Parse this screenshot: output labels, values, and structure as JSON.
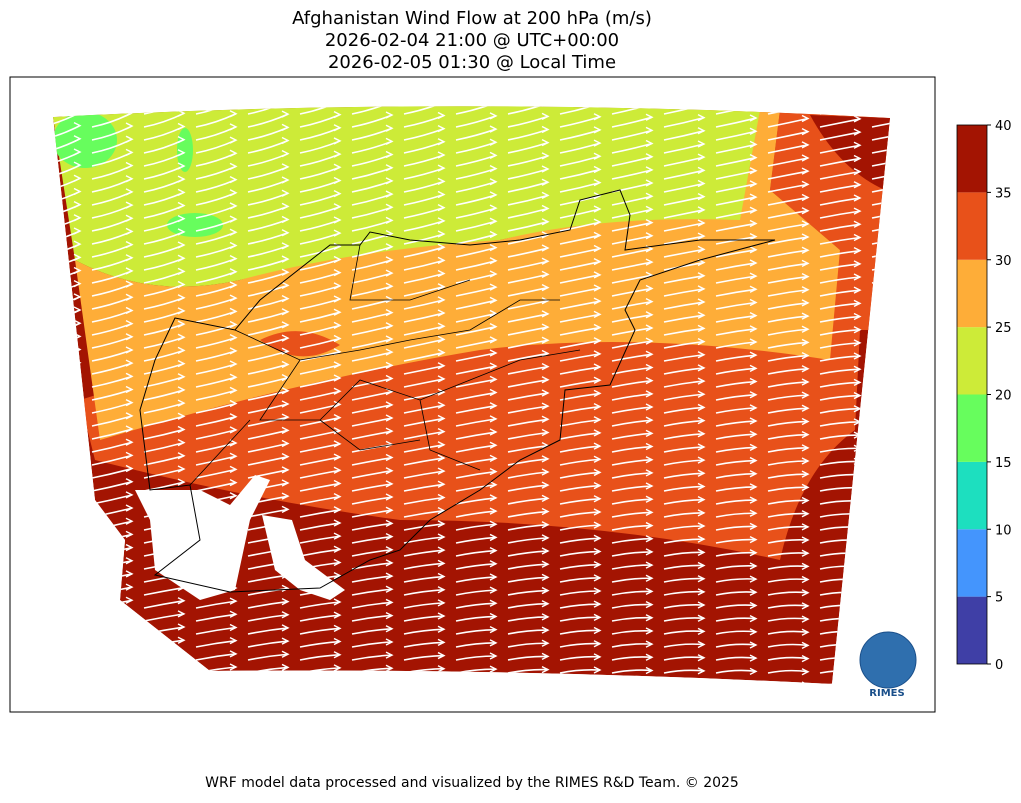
{
  "title": [
    "Afghanistan Wind Flow at 200 hPa (m/s)",
    "2026-02-04 21:00 @ UTC+00:00",
    "2026-02-05 01:30 @ Local Time"
  ],
  "colorbar": {
    "ticks": [
      0,
      5,
      10,
      15,
      20,
      25,
      30,
      35,
      40
    ],
    "colors": [
      "#3f3fa6",
      "#4495fd",
      "#1ddfbf",
      "#67fd5d",
      "#cdeb38",
      "#fead38",
      "#e8511a",
      "#a31402"
    ]
  },
  "logo": "RIMES",
  "footer": "WRF model data processed and visualized by the RIMES R&D Team. © 2025"
}
